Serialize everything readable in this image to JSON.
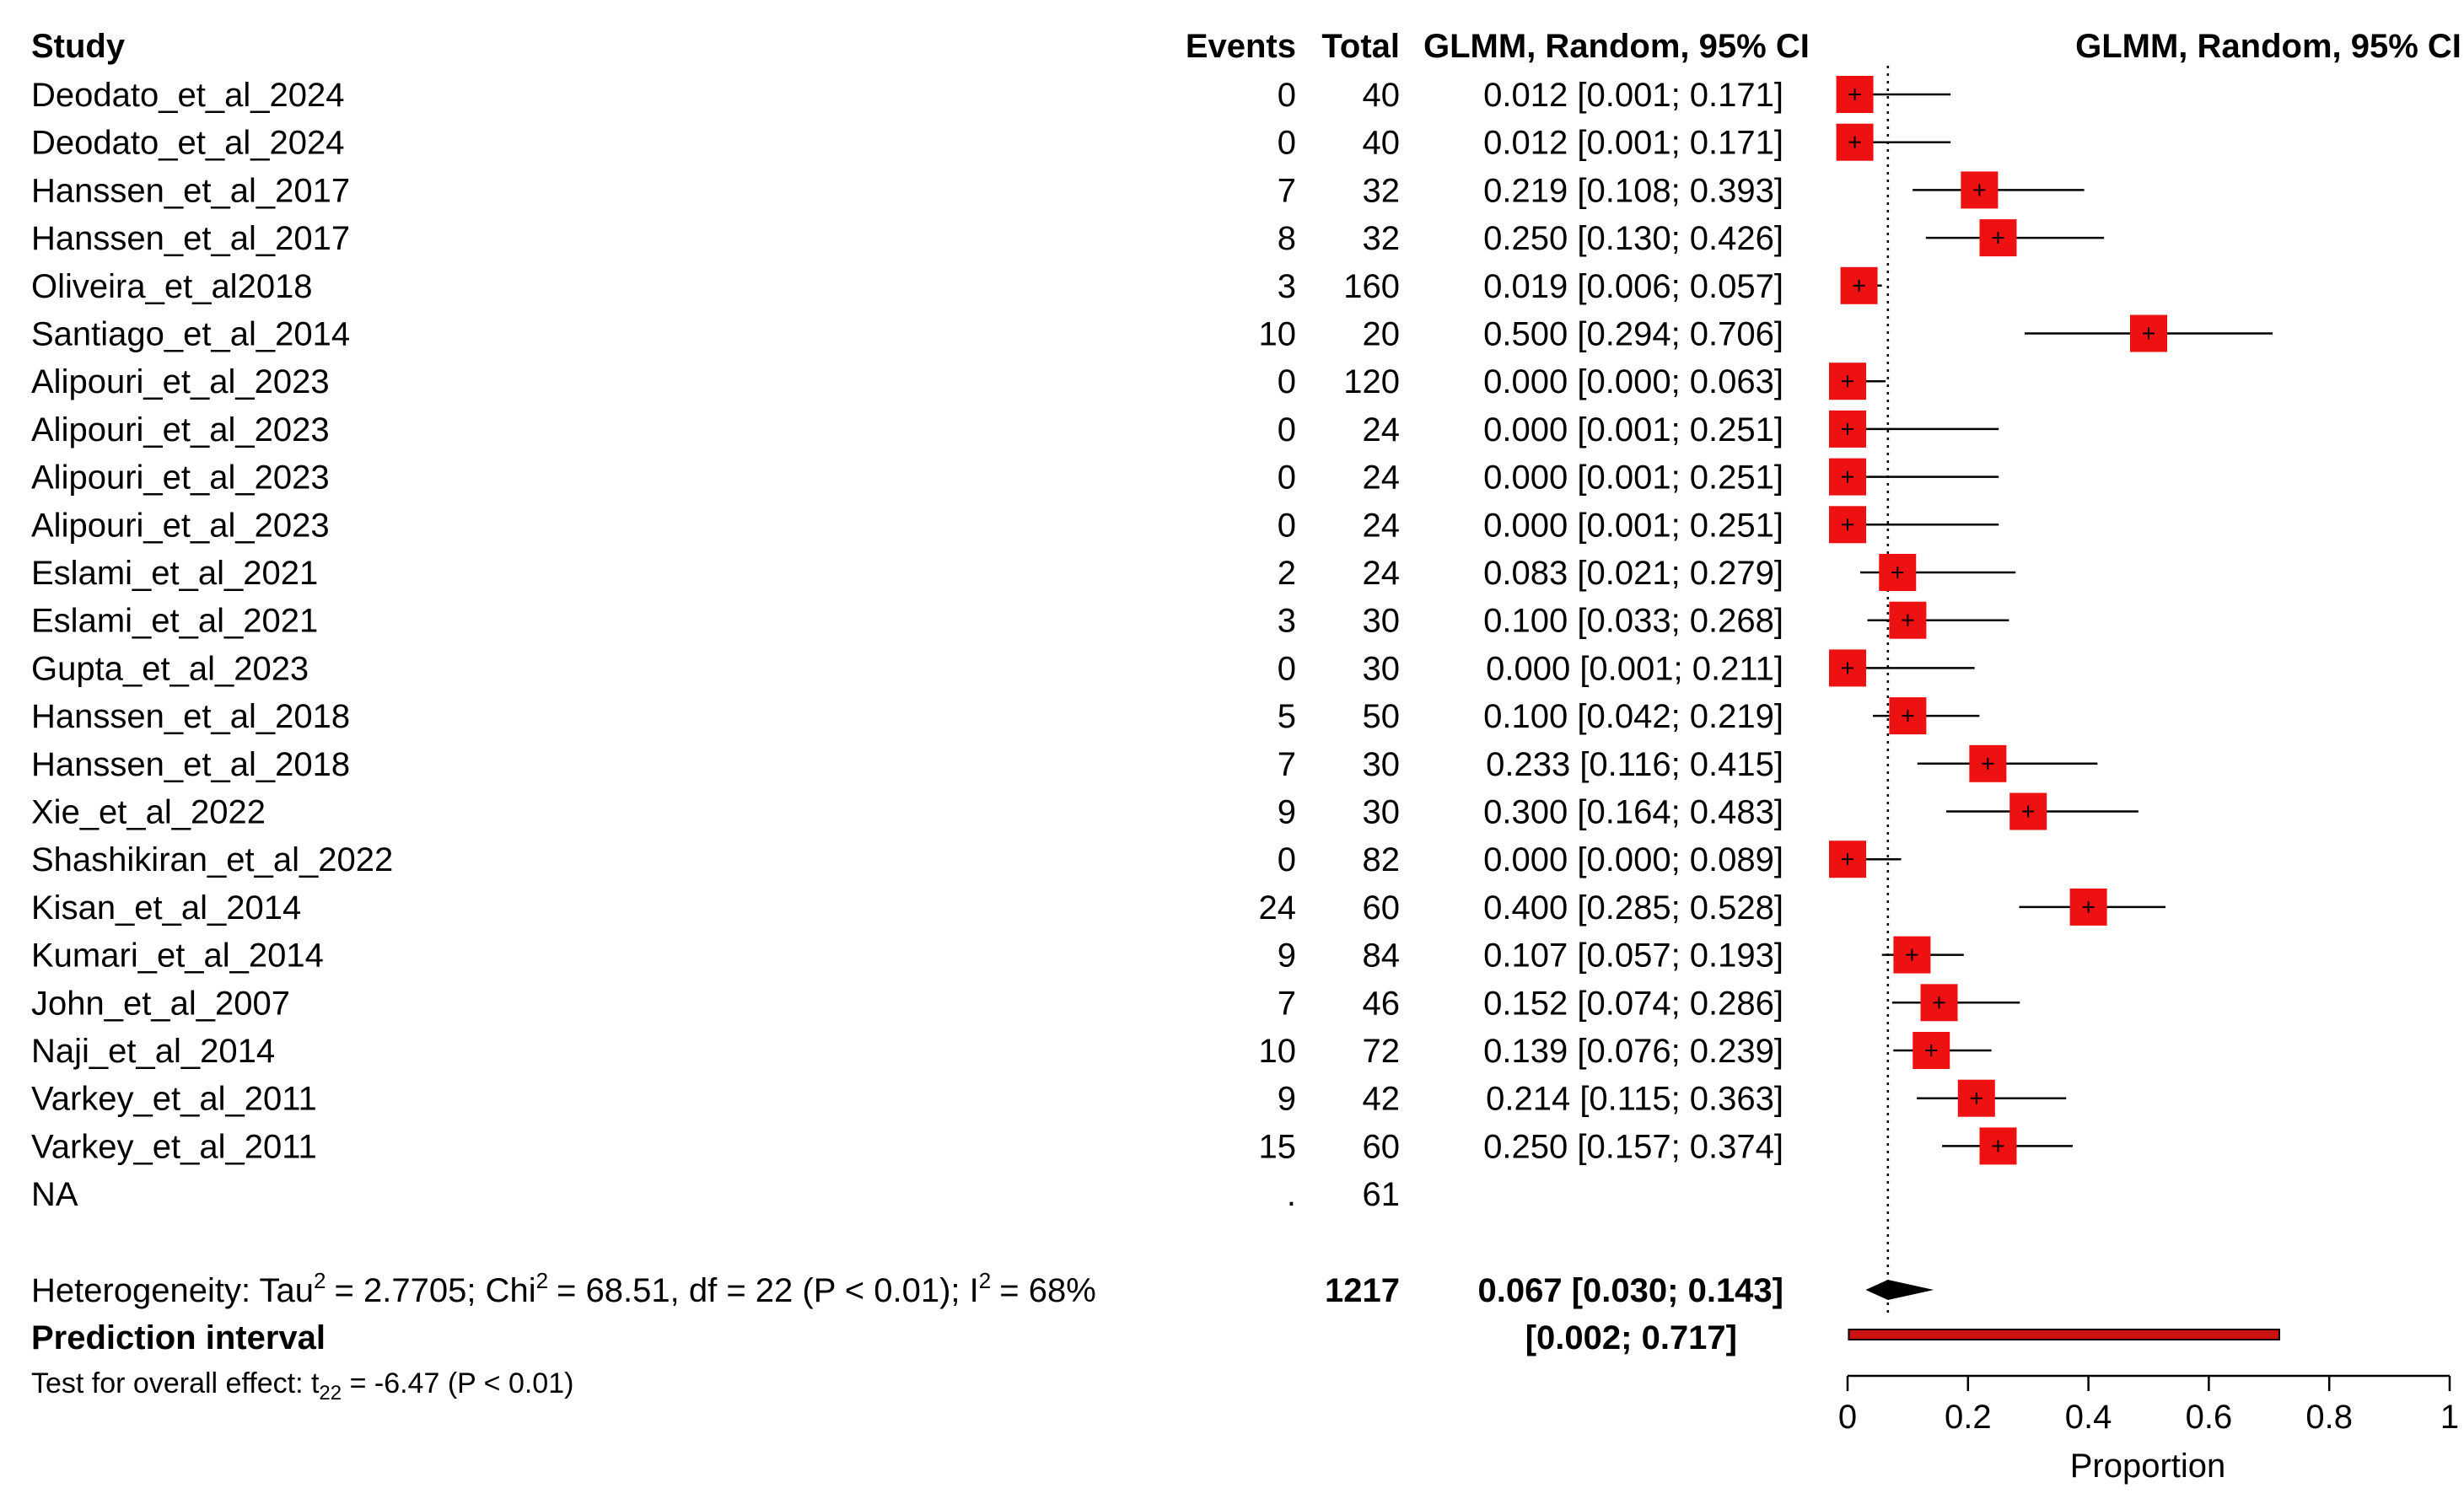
{
  "headers": {
    "study": "Study",
    "events": "Events",
    "total": "Total",
    "ci_col": "GLMM, Random, 95% CI",
    "plot_col": "GLMM, Random, 95% CI"
  },
  "rows": [
    {
      "study": "Deodato_et_al_2024",
      "events": "0",
      "total": "40",
      "ci": "0.012 [0.001; 0.171]"
    },
    {
      "study": "Deodato_et_al_2024",
      "events": "0",
      "total": "40",
      "ci": "0.012 [0.001; 0.171]"
    },
    {
      "study": "Hanssen_et_al_2017",
      "events": "7",
      "total": "32",
      "ci": "0.219 [0.108; 0.393]"
    },
    {
      "study": "Hanssen_et_al_2017",
      "events": "8",
      "total": "32",
      "ci": "0.250 [0.130; 0.426]"
    },
    {
      "study": "Oliveira_et_al2018",
      "events": "3",
      "total": "160",
      "ci": "0.019 [0.006; 0.057]"
    },
    {
      "study": "Santiago_et_al_2014",
      "events": "10",
      "total": "20",
      "ci": "0.500 [0.294; 0.706]"
    },
    {
      "study": "Alipouri_et_al_2023",
      "events": "0",
      "total": "120",
      "ci": "0.000 [0.000; 0.063]"
    },
    {
      "study": "Alipouri_et_al_2023",
      "events": "0",
      "total": "24",
      "ci": "0.000 [0.001; 0.251]"
    },
    {
      "study": "Alipouri_et_al_2023",
      "events": "0",
      "total": "24",
      "ci": "0.000 [0.001; 0.251]"
    },
    {
      "study": "Alipouri_et_al_2023",
      "events": "0",
      "total": "24",
      "ci": "0.000 [0.001; 0.251]"
    },
    {
      "study": "Eslami_et_al_2021",
      "events": "2",
      "total": "24",
      "ci": "0.083 [0.021; 0.279]"
    },
    {
      "study": "Eslami_et_al_2021",
      "events": "3",
      "total": "30",
      "ci": "0.100 [0.033; 0.268]"
    },
    {
      "study": "Gupta_et_al_2023",
      "events": "0",
      "total": "30",
      "ci": "0.000 [0.001; 0.211]"
    },
    {
      "study": "Hanssen_et_al_2018",
      "events": "5",
      "total": "50",
      "ci": "0.100 [0.042; 0.219]"
    },
    {
      "study": "Hanssen_et_al_2018",
      "events": "7",
      "total": "30",
      "ci": "0.233 [0.116; 0.415]"
    },
    {
      "study": "Xie_et_al_2022",
      "events": "9",
      "total": "30",
      "ci": "0.300 [0.164; 0.483]"
    },
    {
      "study": "Shashikiran_et_al_2022",
      "events": "0",
      "total": "82",
      "ci": "0.000 [0.000; 0.089]"
    },
    {
      "study": "Kisan_et_al_2014",
      "events": "24",
      "total": "60",
      "ci": "0.400 [0.285; 0.528]"
    },
    {
      "study": "Kumari_et_al_2014",
      "events": "9",
      "total": "84",
      "ci": "0.107 [0.057; 0.193]"
    },
    {
      "study": "John_et_al_2007",
      "events": "7",
      "total": "46",
      "ci": "0.152 [0.074; 0.286]"
    },
    {
      "study": "Naji_et_al_2014",
      "events": "10",
      "total": "72",
      "ci": "0.139 [0.076; 0.239]"
    },
    {
      "study": "Varkey_et_al_2011",
      "events": "9",
      "total": "42",
      "ci": "0.214 [0.115; 0.363]"
    },
    {
      "study": "Varkey_et_al_2011",
      "events": "15",
      "total": "60",
      "ci": "0.250 [0.157; 0.374]"
    },
    {
      "study": "NA",
      "events": ".",
      "total": "61",
      "ci": ""
    }
  ],
  "summary": {
    "heterogeneity_prefix": "Heterogeneity: Tau",
    "heterogeneity_tau2": "= 2.7705; Chi",
    "heterogeneity_chi2": "= 68.51, df = 22 (P < 0.01); I",
    "heterogeneity_i2": "= 68%",
    "superscript": "2",
    "total": "1217",
    "pooled_ci": "0.067 [0.030; 0.143]",
    "prediction_label": "Prediction interval",
    "prediction_ci": "[0.002; 0.717]",
    "test_prefix": "Test for overall effect: t",
    "test_subscript": "22",
    "test_suffix": " = -6.47 (P < 0.01)"
  },
  "colors": {
    "square": "#ee1111",
    "line": "#000000",
    "prediction_bar": "#cc1111"
  },
  "chart_data": {
    "type": "forest",
    "xlabel": "Proportion",
    "xlim": [
      0,
      1
    ],
    "ticks": [
      0,
      0.2,
      0.4,
      0.6,
      0.8,
      1
    ],
    "tick_labels": [
      "0",
      "0.2",
      "0.4",
      "0.6",
      "0.8",
      "1"
    ],
    "reference_line": 0.067,
    "studies": [
      {
        "est": 0.012,
        "lower": 0.001,
        "upper": 0.171
      },
      {
        "est": 0.012,
        "lower": 0.001,
        "upper": 0.171
      },
      {
        "est": 0.219,
        "lower": 0.108,
        "upper": 0.393
      },
      {
        "est": 0.25,
        "lower": 0.13,
        "upper": 0.426
      },
      {
        "est": 0.019,
        "lower": 0.006,
        "upper": 0.057
      },
      {
        "est": 0.5,
        "lower": 0.294,
        "upper": 0.706
      },
      {
        "est": 0.0,
        "lower": 0.0,
        "upper": 0.063
      },
      {
        "est": 0.0,
        "lower": 0.001,
        "upper": 0.251
      },
      {
        "est": 0.0,
        "lower": 0.001,
        "upper": 0.251
      },
      {
        "est": 0.0,
        "lower": 0.001,
        "upper": 0.251
      },
      {
        "est": 0.083,
        "lower": 0.021,
        "upper": 0.279
      },
      {
        "est": 0.1,
        "lower": 0.033,
        "upper": 0.268
      },
      {
        "est": 0.0,
        "lower": 0.001,
        "upper": 0.211
      },
      {
        "est": 0.1,
        "lower": 0.042,
        "upper": 0.219
      },
      {
        "est": 0.233,
        "lower": 0.116,
        "upper": 0.415
      },
      {
        "est": 0.3,
        "lower": 0.164,
        "upper": 0.483
      },
      {
        "est": 0.0,
        "lower": 0.0,
        "upper": 0.089
      },
      {
        "est": 0.4,
        "lower": 0.285,
        "upper": 0.528
      },
      {
        "est": 0.107,
        "lower": 0.057,
        "upper": 0.193
      },
      {
        "est": 0.152,
        "lower": 0.074,
        "upper": 0.286
      },
      {
        "est": 0.139,
        "lower": 0.076,
        "upper": 0.239
      },
      {
        "est": 0.214,
        "lower": 0.115,
        "upper": 0.363
      },
      {
        "est": 0.25,
        "lower": 0.157,
        "upper": 0.374
      }
    ],
    "pooled": {
      "est": 0.067,
      "lower": 0.03,
      "upper": 0.143
    },
    "prediction_interval": {
      "lower": 0.002,
      "upper": 0.717
    }
  }
}
